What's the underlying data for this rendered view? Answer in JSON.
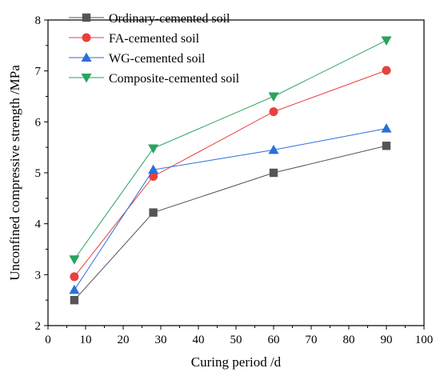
{
  "chart_data": {
    "type": "line",
    "xlabel": "Curing period /d",
    "ylabel": "Unconfined compressive strength /MPa",
    "xlim": [
      0,
      100
    ],
    "ylim": [
      2,
      8
    ],
    "xticks": [
      "0",
      "10",
      "20",
      "30",
      "40",
      "50",
      "60",
      "70",
      "80",
      "90",
      "100"
    ],
    "yticks": [
      "2",
      "3",
      "4",
      "5",
      "6",
      "7",
      "8"
    ],
    "grid": false,
    "legend_position": "top-left",
    "x": [
      7,
      28,
      60,
      90
    ],
    "series": [
      {
        "name": "Ordinary-cemented soil",
        "values": [
          2.5,
          4.22,
          5.0,
          5.53
        ],
        "color": "#555555",
        "marker": "square"
      },
      {
        "name": "FA-cemented soil",
        "values": [
          2.96,
          4.93,
          6.2,
          7.01
        ],
        "color": "#e8413c",
        "marker": "circle"
      },
      {
        "name": "WG-cemented soil",
        "values": [
          2.7,
          5.06,
          5.45,
          5.87
        ],
        "color": "#2a6fdb",
        "marker": "triangle-up"
      },
      {
        "name": "Composite-cemented soil",
        "values": [
          3.3,
          5.48,
          6.5,
          7.6
        ],
        "color": "#2ca25f",
        "marker": "triangle-down"
      }
    ]
  }
}
